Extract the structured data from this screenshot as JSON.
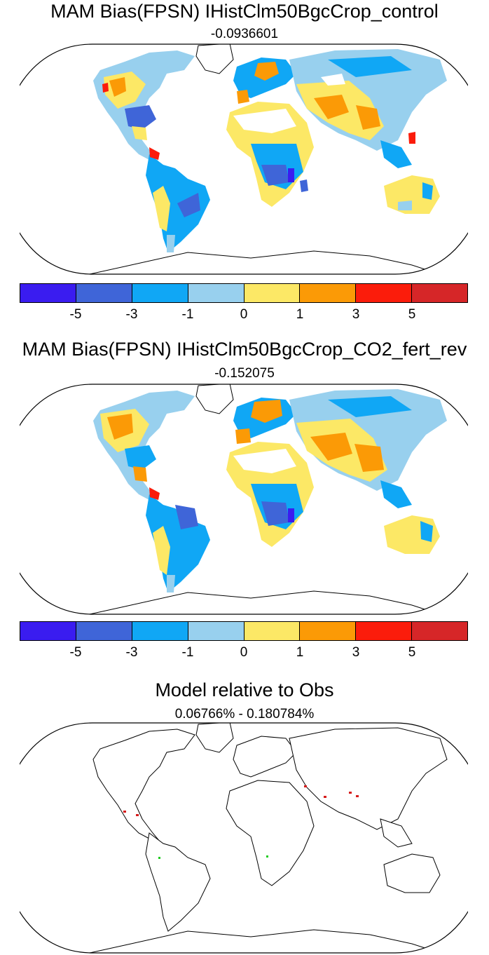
{
  "panels": [
    {
      "title": "MAM Bias(FPSN) IHistClm50BgcCrop_control",
      "subtitle": "-0.0936601"
    },
    {
      "title": "MAM Bias(FPSN) IHistClm50BgcCrop_CO2_fert_rev",
      "subtitle": "-0.152075"
    },
    {
      "title": "Model relative to Obs",
      "subtitle": "0.06766% - 0.180784%"
    }
  ],
  "colorbar": {
    "colors": [
      "#3a1cf0",
      "#3f65d8",
      "#10a7f5",
      "#98d0ee",
      "#fce866",
      "#fb9a06",
      "#fb1c0b",
      "#d62628"
    ],
    "labels": [
      "-5",
      "-3",
      "-1",
      "0",
      "1",
      "3",
      "5"
    ]
  },
  "relative_markers": {
    "positive_color": "#d61d1d",
    "negative_color": "#22cc22"
  }
}
